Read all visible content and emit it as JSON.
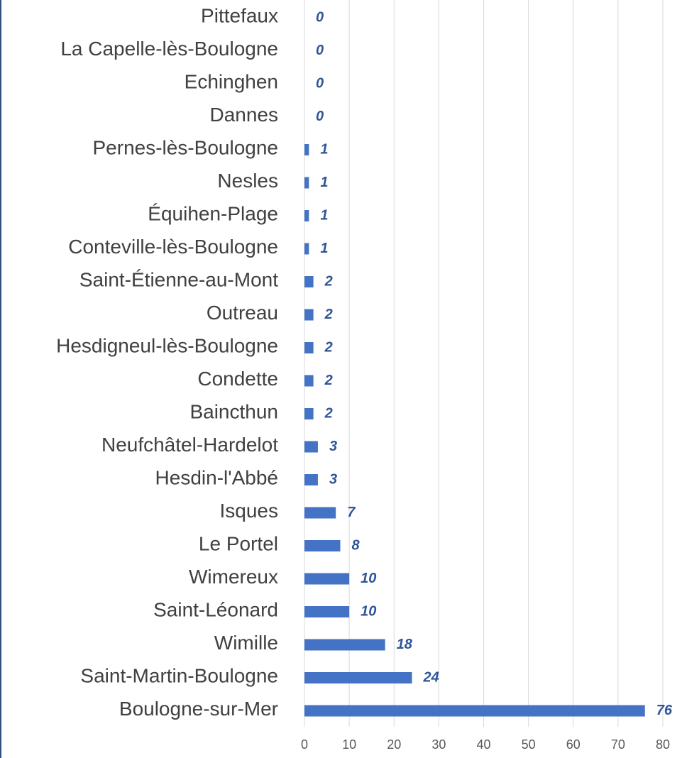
{
  "chart_data": {
    "type": "bar",
    "orientation": "horizontal",
    "categories": [
      "Pittefaux",
      "La Capelle-lès-Boulogne",
      "Echinghen",
      "Dannes",
      "Pernes-lès-Boulogne",
      "Nesles",
      "Équihen-Plage",
      "Conteville-lès-Boulogne",
      "Saint-Étienne-au-Mont",
      "Outreau",
      "Hesdigneul-lès-Boulogne",
      "Condette",
      "Baincthun",
      "Neufchâtel-Hardelot",
      "Hesdin-l'Abbé",
      "Isques",
      "Le Portel",
      "Wimereux",
      "Saint-Léonard",
      "Wimille",
      "Saint-Martin-Boulogne",
      "Boulogne-sur-Mer"
    ],
    "values": [
      0,
      0,
      0,
      0,
      1,
      1,
      1,
      1,
      2,
      2,
      2,
      2,
      2,
      3,
      3,
      7,
      8,
      10,
      10,
      18,
      24,
      76
    ],
    "color": "#4472c4",
    "xlim": [
      0,
      80
    ],
    "xticks": [
      0,
      10,
      20,
      30,
      40,
      50,
      60,
      70,
      80
    ],
    "grid": true,
    "data_labels": true
  }
}
